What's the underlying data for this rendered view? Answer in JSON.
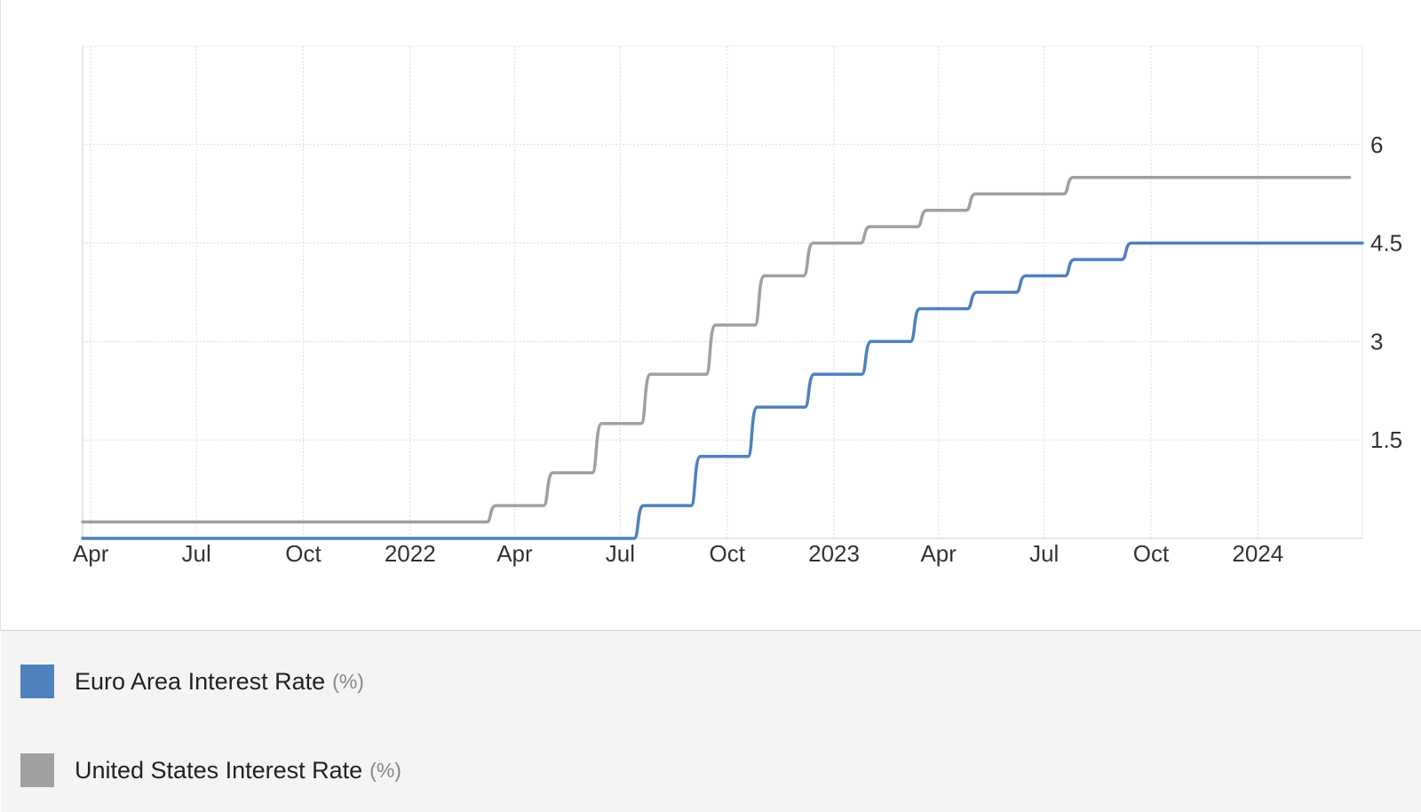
{
  "colors": {
    "euro": "#4f81bd",
    "us": "#a0a0a0",
    "grid": "#dcdcdc",
    "axis": "#cccccc"
  },
  "legend": {
    "items": [
      {
        "label": "Euro Area Interest Rate",
        "unit": "(%)",
        "color": "#4f81bd"
      },
      {
        "label": "United States Interest Rate",
        "unit": "(%)",
        "color": "#a0a0a0"
      }
    ]
  },
  "chart_data": {
    "type": "line",
    "step": true,
    "title": "",
    "xlabel": "",
    "ylabel": "",
    "grid": true,
    "y_axis_side": "right",
    "legend_placement": "bottom",
    "xlim": [
      "2021-03-25",
      "2024-03-31"
    ],
    "ylim": [
      0,
      7.5
    ],
    "y_ticks": [
      1.5,
      3,
      4.5,
      6
    ],
    "y_tick_labels": [
      "1.5",
      "3",
      "4.5",
      "6"
    ],
    "x_ticks": [
      {
        "date": "2021-04-01",
        "label": "Apr"
      },
      {
        "date": "2021-07-01",
        "label": "Jul"
      },
      {
        "date": "2021-10-01",
        "label": "Oct"
      },
      {
        "date": "2022-01-01",
        "label": "2022"
      },
      {
        "date": "2022-04-01",
        "label": "Apr"
      },
      {
        "date": "2022-07-01",
        "label": "Jul"
      },
      {
        "date": "2022-10-01",
        "label": "Oct"
      },
      {
        "date": "2023-01-01",
        "label": "2023"
      },
      {
        "date": "2023-04-01",
        "label": "Apr"
      },
      {
        "date": "2023-07-01",
        "label": "Jul"
      },
      {
        "date": "2023-10-01",
        "label": "Oct"
      },
      {
        "date": "2024-01-01",
        "label": "2024"
      }
    ],
    "series": [
      {
        "name": "Euro Area Interest Rate",
        "color": "#4f81bd",
        "points": [
          [
            "2021-03-25",
            0
          ],
          [
            "2022-07-21",
            0.5
          ],
          [
            "2022-09-08",
            1.25
          ],
          [
            "2022-10-27",
            2.0
          ],
          [
            "2022-12-15",
            2.5
          ],
          [
            "2023-02-02",
            3.0
          ],
          [
            "2023-03-16",
            3.5
          ],
          [
            "2023-05-04",
            3.75
          ],
          [
            "2023-06-15",
            4.0
          ],
          [
            "2023-07-27",
            4.25
          ],
          [
            "2023-09-14",
            4.5
          ],
          [
            "2024-03-31",
            4.5
          ]
        ]
      },
      {
        "name": "United States Interest Rate",
        "color": "#a0a0a0",
        "points": [
          [
            "2021-03-25",
            0.25
          ],
          [
            "2022-03-16",
            0.5
          ],
          [
            "2022-05-04",
            1.0
          ],
          [
            "2022-06-15",
            1.75
          ],
          [
            "2022-07-27",
            2.5
          ],
          [
            "2022-09-21",
            3.25
          ],
          [
            "2022-11-02",
            4.0
          ],
          [
            "2022-12-14",
            4.5
          ],
          [
            "2023-02-01",
            4.75
          ],
          [
            "2023-03-22",
            5.0
          ],
          [
            "2023-05-03",
            5.25
          ],
          [
            "2023-07-26",
            5.5
          ],
          [
            "2024-03-20",
            5.5
          ]
        ]
      }
    ]
  }
}
